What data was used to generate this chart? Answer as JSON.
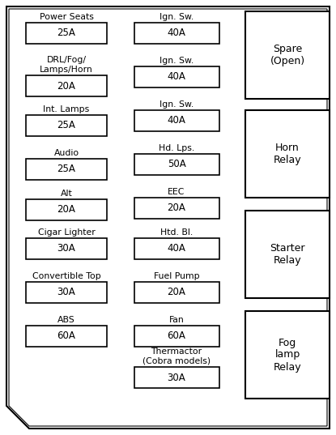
{
  "bg_color": "#ffffff",
  "border_color": "#000000",
  "left_fuses": [
    {
      "label": "Power Seats",
      "amp": "25A",
      "multiline": false
    },
    {
      "label": "DRL/Fog/\nLamps/Horn",
      "amp": "20A",
      "multiline": true
    },
    {
      "label": "Int. Lamps",
      "amp": "25A",
      "multiline": false
    },
    {
      "label": "Audio",
      "amp": "25A",
      "multiline": false
    },
    {
      "label": "Alt",
      "amp": "20A",
      "multiline": false
    },
    {
      "label": "Cigar Lighter",
      "amp": "30A",
      "multiline": false
    },
    {
      "label": "Convertible Top",
      "amp": "30A",
      "multiline": false
    },
    {
      "label": "ABS",
      "amp": "60A",
      "multiline": false
    }
  ],
  "mid_fuses": [
    {
      "label": "Ign. Sw.",
      "amp": "40A",
      "multiline": false
    },
    {
      "label": "Ign. Sw.",
      "amp": "40A",
      "multiline": false
    },
    {
      "label": "Ign. Sw.",
      "amp": "40A",
      "multiline": false
    },
    {
      "label": "Hd. Lps.",
      "amp": "50A",
      "multiline": false
    },
    {
      "label": "EEC",
      "amp": "20A",
      "multiline": false
    },
    {
      "label": "Htd. Bl.",
      "amp": "40A",
      "multiline": false
    },
    {
      "label": "Fuel Pump",
      "amp": "20A",
      "multiline": false
    },
    {
      "label": "Fan",
      "amp": "60A",
      "multiline": false
    },
    {
      "label": "Thermactor\n(Cobra models)",
      "amp": "30A",
      "multiline": true
    }
  ],
  "right_relays": [
    {
      "label": "Spare\n(Open)"
    },
    {
      "label": "Horn\nRelay"
    },
    {
      "label": "Starter\nRelay"
    },
    {
      "label": "Fog\nlamp\nRelay"
    }
  ],
  "fuse_box_color": "#ffffff",
  "fuse_border": "#000000",
  "text_color": "#000000",
  "font_size_label": 7.8,
  "font_size_amp": 8.5,
  "font_size_relay": 9.0
}
